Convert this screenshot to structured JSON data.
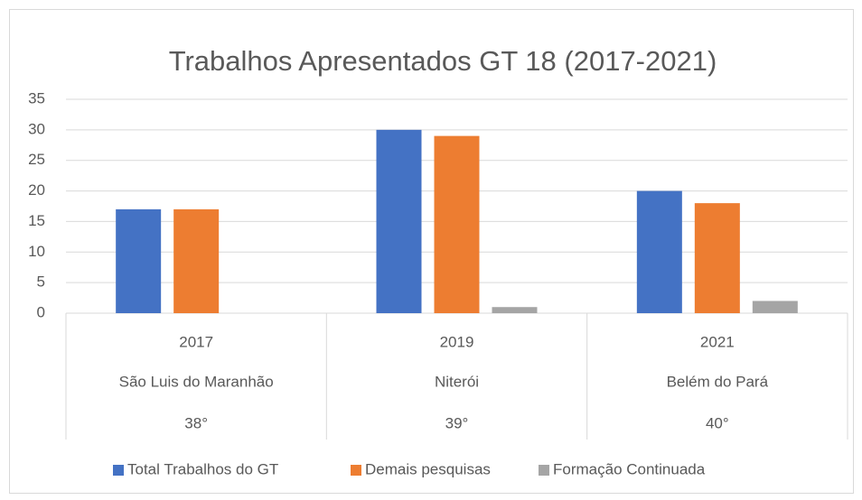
{
  "chart_data": {
    "type": "bar",
    "title": "Trabalhos Apresentados GT 18 (2017-2021)",
    "categories": [
      [
        "2017",
        "São Luis do Maranhão",
        "38°"
      ],
      [
        "2019",
        "Niterói",
        "39°"
      ],
      [
        "2021",
        "Belém do Pará",
        "40°"
      ]
    ],
    "series": [
      {
        "name": "Total Trabalhos do GT",
        "color": "#4472c4",
        "values": [
          17,
          30,
          20
        ]
      },
      {
        "name": "Demais pesquisas",
        "color": "#ed7d31",
        "values": [
          17,
          29,
          18
        ]
      },
      {
        "name": "Formação Continuada",
        "color": "#a5a5a5",
        "values": [
          0,
          1,
          2
        ]
      }
    ],
    "ylim": [
      0,
      35
    ],
    "yticks": [
      0,
      5,
      10,
      15,
      20,
      25,
      30,
      35
    ],
    "grid": true,
    "legend": "bottom"
  }
}
